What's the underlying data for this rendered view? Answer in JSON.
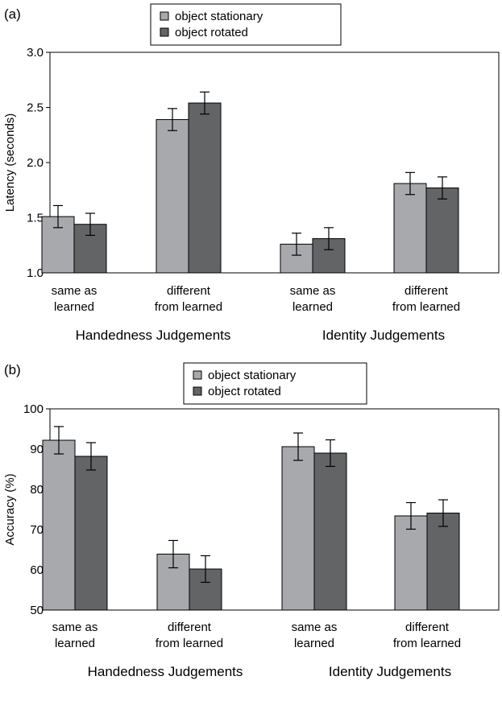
{
  "chart_data": [
    {
      "panel_label": "(a)",
      "type": "bar",
      "ylabel": "Latency (seconds)",
      "ylim": [
        1.0,
        3.0
      ],
      "yticks": [
        "1.0",
        "1.5",
        "2.0",
        "2.5",
        "3.0"
      ],
      "grid": false,
      "legend_position": "top-center",
      "categories": [
        "same as learned",
        "different from learned",
        "same as learned",
        "different from learned"
      ],
      "category_lines": [
        [
          "same as",
          "learned"
        ],
        [
          "different",
          "from learned"
        ],
        [
          "same as",
          "learned"
        ],
        [
          "different",
          "from learned"
        ]
      ],
      "groups": [
        {
          "label": "Handedness Judgements",
          "categories": [
            0,
            1
          ]
        },
        {
          "label": "Identity Judgements",
          "categories": [
            2,
            3
          ]
        }
      ],
      "series": [
        {
          "name": "object stationary",
          "color": "#a7a9ac",
          "values": [
            1.51,
            2.39,
            1.26,
            1.81
          ],
          "errors": [
            0.1,
            0.1,
            0.1,
            0.1
          ]
        },
        {
          "name": "object rotated",
          "color": "#636466",
          "values": [
            1.44,
            2.54,
            1.31,
            1.77
          ],
          "errors": [
            0.1,
            0.1,
            0.1,
            0.1
          ]
        }
      ]
    },
    {
      "panel_label": "(b)",
      "type": "bar",
      "ylabel": "Accuracy (%)",
      "ylim": [
        50,
        100
      ],
      "yticks": [
        "50",
        "60",
        "70",
        "80",
        "90",
        "100"
      ],
      "grid": false,
      "legend_position": "top-center",
      "categories": [
        "same as learned",
        "different from learned",
        "same as learned",
        "different from learned"
      ],
      "category_lines": [
        [
          "same as",
          "learned"
        ],
        [
          "different",
          "from learned"
        ],
        [
          "same as",
          "learned"
        ],
        [
          "different",
          "from learned"
        ]
      ],
      "groups": [
        {
          "label": "Handedness Judgements",
          "categories": [
            0,
            1
          ]
        },
        {
          "label": "Identity Judgements",
          "categories": [
            2,
            3
          ]
        }
      ],
      "series": [
        {
          "name": "object stationary",
          "color": "#a7a9ac",
          "values": [
            92.2,
            63.9,
            90.6,
            73.4
          ],
          "errors": [
            3.4,
            3.4,
            3.4,
            3.3
          ]
        },
        {
          "name": "object rotated",
          "color": "#636466",
          "values": [
            88.2,
            60.2,
            89.0,
            74.1
          ],
          "errors": [
            3.4,
            3.3,
            3.3,
            3.3
          ]
        }
      ]
    }
  ]
}
